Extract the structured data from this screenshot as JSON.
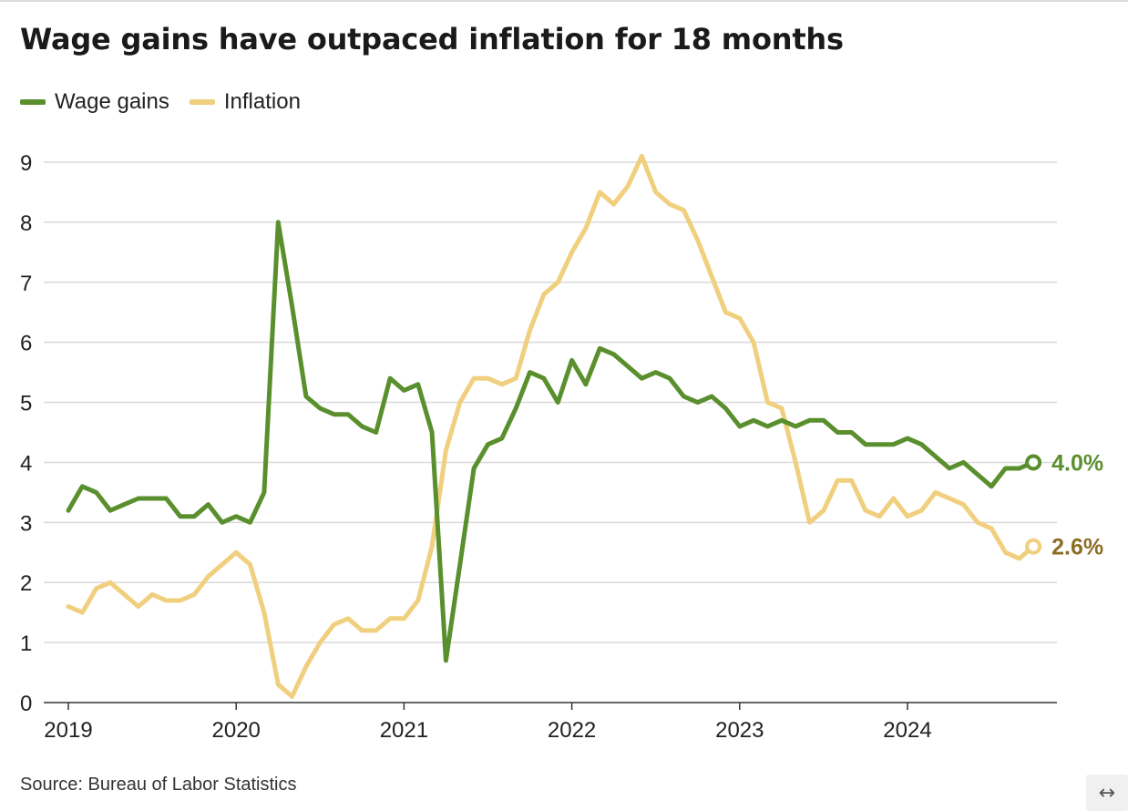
{
  "title": "Wage gains have outpaced inflation for 18 months",
  "source": "Source: Bureau of Labor Statistics",
  "expand_icon": "↔",
  "colors": {
    "wage": "#5a8f2e",
    "inflation": "#f0cf7e",
    "inflation_label": "#8c6d26",
    "grid": "#d9d9d9",
    "axis": "#333333"
  },
  "legend": [
    {
      "label": "Wage gains",
      "color": "#5a8f2e"
    },
    {
      "label": "Inflation",
      "color": "#f0cf7e"
    }
  ],
  "chart_data": {
    "type": "line",
    "title": "Wage gains have outpaced inflation for 18 months",
    "xlabel": "",
    "ylabel": "",
    "ylim": [
      0,
      9
    ],
    "yticks": [
      0,
      1,
      2,
      3,
      4,
      5,
      6,
      7,
      8,
      9
    ],
    "xticks": [
      "2019",
      "2020",
      "2021",
      "2022",
      "2023",
      "2024"
    ],
    "x_start": "2019-01",
    "x_end": "2024-10",
    "grid": true,
    "legend_position": "top-left",
    "series": [
      {
        "name": "Wage gains",
        "color": "#5a8f2e",
        "end_label": "4.0%",
        "values": [
          3.2,
          3.6,
          3.5,
          3.2,
          3.3,
          3.4,
          3.4,
          3.4,
          3.1,
          3.1,
          3.3,
          3.0,
          3.1,
          3.0,
          3.5,
          8.0,
          6.6,
          5.1,
          4.9,
          4.8,
          4.8,
          4.6,
          4.5,
          5.4,
          5.2,
          5.3,
          4.5,
          0.7,
          2.3,
          3.9,
          4.3,
          4.4,
          4.9,
          5.5,
          5.4,
          5.0,
          5.7,
          5.3,
          5.9,
          5.8,
          5.6,
          5.4,
          5.5,
          5.4,
          5.1,
          5.0,
          5.1,
          4.9,
          4.6,
          4.7,
          4.6,
          4.7,
          4.6,
          4.7,
          4.7,
          4.5,
          4.5,
          4.3,
          4.3,
          4.3,
          4.4,
          4.3,
          4.1,
          3.9,
          4.0,
          3.8,
          3.6,
          3.9,
          3.9,
          4.0
        ]
      },
      {
        "name": "Inflation",
        "color": "#f0cf7e",
        "end_label": "2.6%",
        "values": [
          1.6,
          1.5,
          1.9,
          2.0,
          1.8,
          1.6,
          1.8,
          1.7,
          1.7,
          1.8,
          2.1,
          2.3,
          2.5,
          2.3,
          1.5,
          0.3,
          0.1,
          0.6,
          1.0,
          1.3,
          1.4,
          1.2,
          1.2,
          1.4,
          1.4,
          1.7,
          2.6,
          4.2,
          5.0,
          5.4,
          5.4,
          5.3,
          5.4,
          6.2,
          6.8,
          7.0,
          7.5,
          7.9,
          8.5,
          8.3,
          8.6,
          9.1,
          8.5,
          8.3,
          8.2,
          7.7,
          7.1,
          6.5,
          6.4,
          6.0,
          5.0,
          4.9,
          4.0,
          3.0,
          3.2,
          3.7,
          3.7,
          3.2,
          3.1,
          3.4,
          3.1,
          3.2,
          3.5,
          3.4,
          3.3,
          3.0,
          2.9,
          2.5,
          2.4,
          2.6
        ]
      }
    ]
  }
}
